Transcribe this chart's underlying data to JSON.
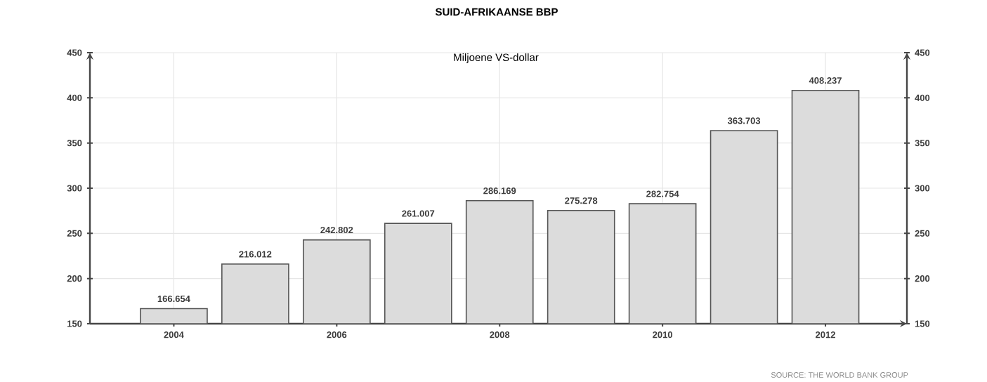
{
  "chart_data": {
    "type": "bar",
    "title": "SUID-AFRIKAANSE BBP",
    "subtitle": "Miljoene VS-dollar",
    "categories": [
      "2004",
      null,
      "2006",
      null,
      "2008",
      null,
      "2010",
      null,
      "2012"
    ],
    "values": [
      166.654,
      216.012,
      242.802,
      261.007,
      286.169,
      275.278,
      282.754,
      363.703,
      408.237
    ],
    "color": "#dcdcdc",
    "data_labels": true,
    "ylim": [
      150,
      450
    ],
    "yticks": [
      150,
      200,
      250,
      300,
      350,
      400,
      450
    ],
    "y2lim": [
      150,
      450
    ],
    "y2ticks": [
      150,
      200,
      250,
      300,
      350,
      400,
      450
    ],
    "grid": true,
    "annotations": [
      "SOURCE: THE WORLD BANK GROUP"
    ]
  }
}
